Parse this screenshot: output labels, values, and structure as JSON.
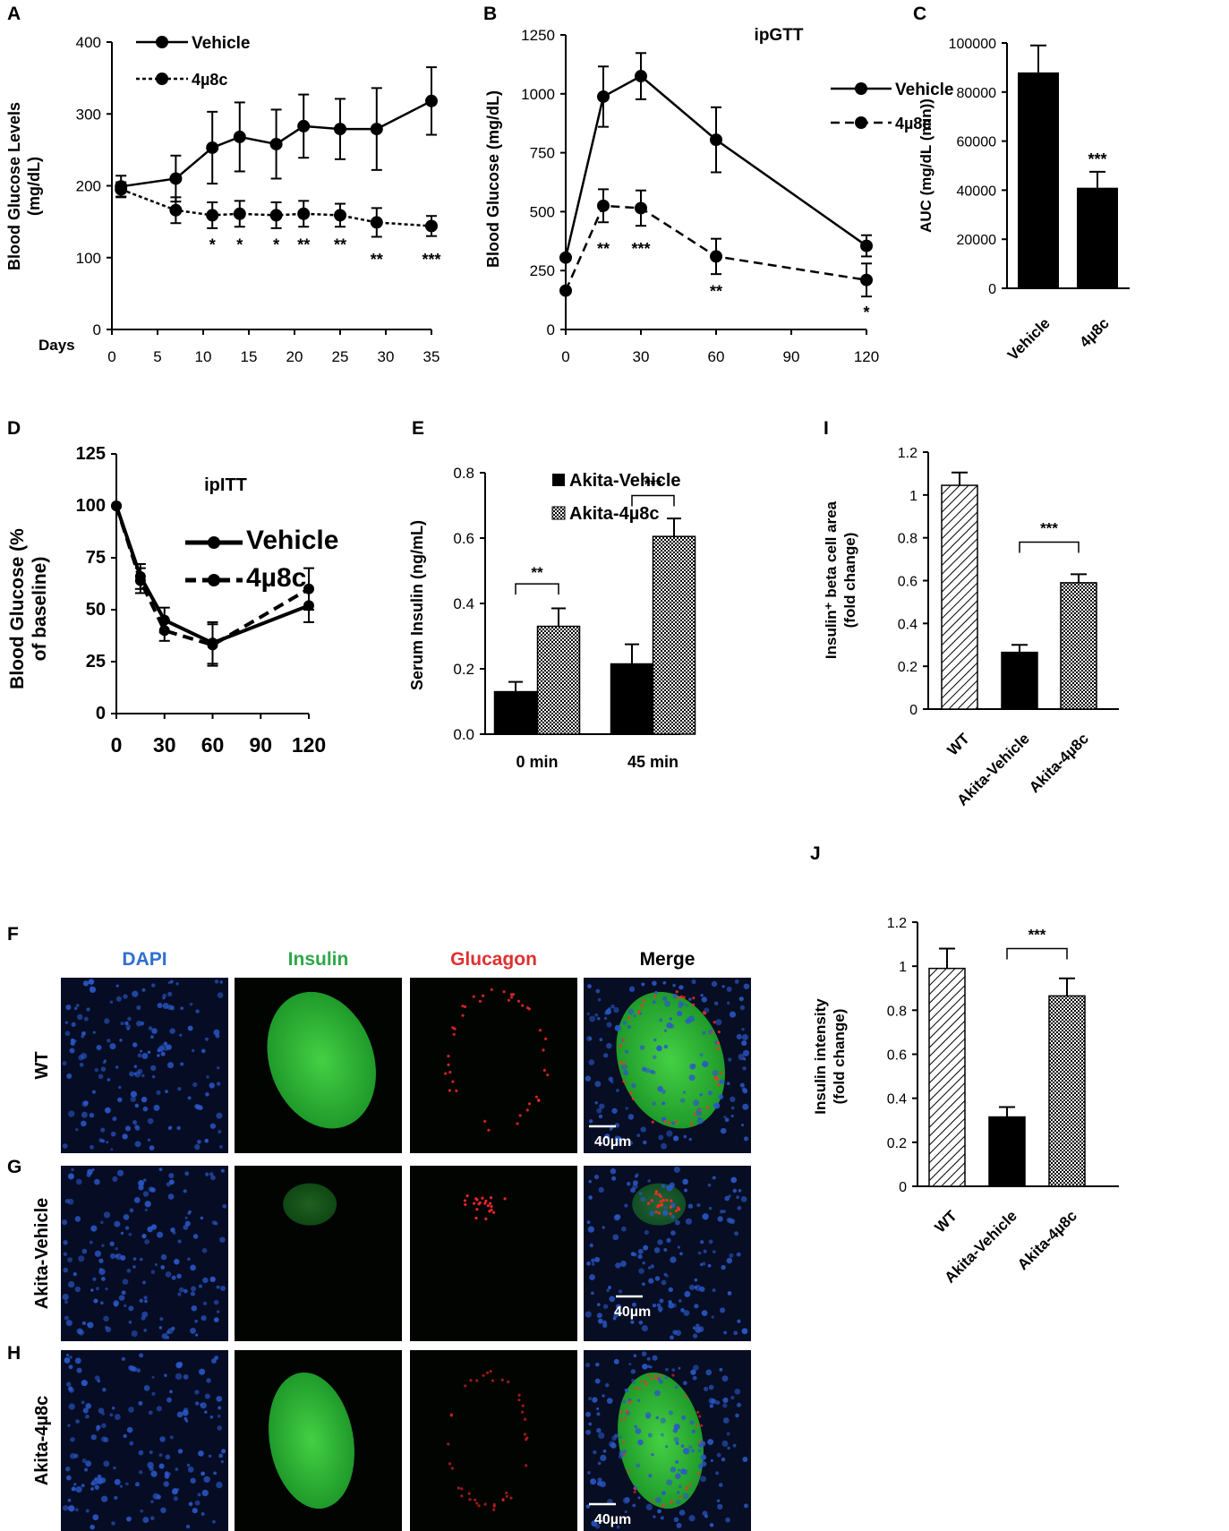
{
  "colors": {
    "dapi": "#2f6fd0",
    "insulin": "#2ea84a",
    "glucagon": "#e03030",
    "merge": "#000000"
  },
  "microscopy": {
    "columns": [
      "DAPI",
      "Insulin",
      "Glucagon",
      "Merge"
    ],
    "rows": [
      {
        "panel": "F",
        "label": "WT"
      },
      {
        "panel": "G",
        "label": "Akita-Vehicle"
      },
      {
        "panel": "H",
        "label": "Akita-4µ8c"
      }
    ],
    "scale_bar": "40µm"
  },
  "chart_data": [
    {
      "panel": "A",
      "type": "line",
      "ylabel": "Blood Glucose Levels (mg/dL)",
      "xlabel": "Days",
      "xlim": [
        0,
        35
      ],
      "ylim": [
        0,
        400
      ],
      "xticks": [
        0,
        5,
        10,
        15,
        20,
        25,
        30,
        35
      ],
      "yticks": [
        0,
        100,
        200,
        300,
        400
      ],
      "legend": "top-left",
      "series": [
        {
          "name": "Vehicle",
          "style": "solid",
          "x": [
            1,
            7,
            11,
            14,
            18,
            21,
            25,
            29,
            35
          ],
          "y": [
            199,
            210,
            253,
            268,
            258,
            283,
            279,
            279,
            318
          ],
          "err": [
            15,
            32,
            50,
            48,
            48,
            44,
            42,
            57,
            47
          ]
        },
        {
          "name": "4µ8c",
          "style": "dashed",
          "x": [
            1,
            7,
            11,
            14,
            18,
            21,
            25,
            29,
            35
          ],
          "y": [
            195,
            166,
            159,
            161,
            159,
            161,
            159,
            149,
            144
          ],
          "err": [
            10,
            18,
            18,
            18,
            18,
            18,
            16,
            20,
            14
          ]
        }
      ],
      "annotations": [
        {
          "x": 11,
          "y": 250,
          "text": "*"
        },
        {
          "x": 11,
          "y": 120,
          "text": "*"
        },
        {
          "x": 14,
          "y": 120,
          "text": "*"
        },
        {
          "x": 18,
          "y": 120,
          "text": "*"
        },
        {
          "x": 21,
          "y": 120,
          "text": "**"
        },
        {
          "x": 25,
          "y": 120,
          "text": "**"
        },
        {
          "x": 29,
          "y": 100,
          "text": "**"
        },
        {
          "x": 35,
          "y": 100,
          "text": "***"
        }
      ]
    },
    {
      "panel": "B",
      "type": "line",
      "title": "ipGTT",
      "ylabel": "Blood Glucose (mg/dL)",
      "xlim": [
        0,
        120
      ],
      "ylim": [
        0,
        1250
      ],
      "xticks": [
        0,
        30,
        60,
        90,
        120
      ],
      "yticks": [
        0,
        250,
        500,
        750,
        1000,
        1250
      ],
      "legend": "top-right",
      "series": [
        {
          "name": "Vehicle",
          "style": "solid",
          "x": [
            0,
            15,
            30,
            60,
            120
          ],
          "y": [
            305,
            988,
            1075,
            805,
            355
          ],
          "err": [
            0,
            128,
            98,
            138,
            45
          ]
        },
        {
          "name": "4µ8c",
          "style": "dashed",
          "x": [
            0,
            15,
            30,
            60,
            120
          ],
          "y": [
            165,
            525,
            515,
            310,
            210
          ],
          "err": [
            0,
            70,
            75,
            75,
            70
          ]
        }
      ],
      "annotations": [
        {
          "x": 15,
          "y": 350,
          "text": "**"
        },
        {
          "x": 30,
          "y": 350,
          "text": "***"
        },
        {
          "x": 60,
          "y": 170,
          "text": "**"
        },
        {
          "x": 120,
          "y": 80,
          "text": "*"
        }
      ]
    },
    {
      "panel": "C",
      "type": "bar",
      "ylabel": "AUC (mg/dL (min))",
      "categories": [
        "Vehicle",
        "4µ8c"
      ],
      "values": [
        88000,
        41000
      ],
      "err": [
        11000,
        6500
      ],
      "ylim": [
        0,
        100000
      ],
      "yticks": [
        0,
        20000,
        40000,
        60000,
        80000,
        100000
      ],
      "annotations": [
        {
          "category": "4µ8c",
          "text": "***"
        }
      ]
    },
    {
      "panel": "D",
      "type": "line",
      "title": "ipITT",
      "ylabel": "Blood Glucose (% of baseline)",
      "xlim": [
        0,
        120
      ],
      "ylim": [
        0,
        125
      ],
      "xticks": [
        0,
        30,
        60,
        90,
        120
      ],
      "yticks": [
        0,
        25,
        50,
        75,
        100,
        125
      ],
      "legend": "top-right",
      "series": [
        {
          "name": "Vehicle",
          "style": "solid",
          "x": [
            0,
            15,
            30,
            60,
            120
          ],
          "y": [
            100,
            66,
            45,
            34,
            52
          ],
          "err": [
            0,
            6,
            6,
            10,
            8
          ]
        },
        {
          "name": "4µ8c",
          "style": "dashed",
          "x": [
            0,
            15,
            30,
            60,
            120
          ],
          "y": [
            100,
            64,
            40,
            33,
            60
          ],
          "err": [
            0,
            6,
            5,
            10,
            10
          ]
        }
      ]
    },
    {
      "panel": "E",
      "type": "bar",
      "ylabel": "Serum Insulin (ng/mL)",
      "categories": [
        "0 min",
        "45 min"
      ],
      "series": [
        {
          "name": "Akita-Vehicle",
          "values": [
            0.13,
            0.215
          ],
          "err": [
            0.03,
            0.06
          ]
        },
        {
          "name": "Akita-4µ8c",
          "values": [
            0.33,
            0.605
          ],
          "err": [
            0.055,
            0.055
          ]
        }
      ],
      "ylim": [
        0,
        0.8
      ],
      "yticks": [
        "0.0",
        "0.2",
        "0.4",
        "0.6",
        "0.8"
      ],
      "legend": "top-left",
      "annotations": [
        {
          "category": "0 min",
          "text": "**"
        },
        {
          "category": "45 min",
          "text": "***"
        }
      ]
    },
    {
      "panel": "I",
      "type": "bar",
      "ylabel": "Insulin+ beta cell area (fold change)",
      "categories": [
        "WT",
        "Akita-Vehicle",
        "Akita-4µ8c"
      ],
      "values": [
        1.045,
        0.265,
        0.59
      ],
      "err": [
        0.06,
        0.035,
        0.04
      ],
      "ylim": [
        0,
        1.2
      ],
      "yticks": [
        "0",
        "0.2",
        "0.4",
        "0.6",
        "0.8",
        "1",
        "1.2"
      ],
      "annotations": [
        {
          "between": [
            "Akita-Vehicle",
            "Akita-4µ8c"
          ],
          "text": "***"
        }
      ]
    },
    {
      "panel": "J",
      "type": "bar",
      "ylabel": "Insulin intensity (fold change)",
      "categories": [
        "WT",
        "Akita-Vehicle",
        "Akita-4µ8c"
      ],
      "values": [
        0.99,
        0.315,
        0.865
      ],
      "err": [
        0.09,
        0.045,
        0.08
      ],
      "ylim": [
        0,
        1.2
      ],
      "yticks": [
        "0",
        "0.2",
        "0.4",
        "0.6",
        "0.8",
        "1",
        "1.2"
      ],
      "annotations": [
        {
          "between": [
            "Akita-Vehicle",
            "Akita-4µ8c"
          ],
          "text": "***"
        }
      ]
    }
  ]
}
